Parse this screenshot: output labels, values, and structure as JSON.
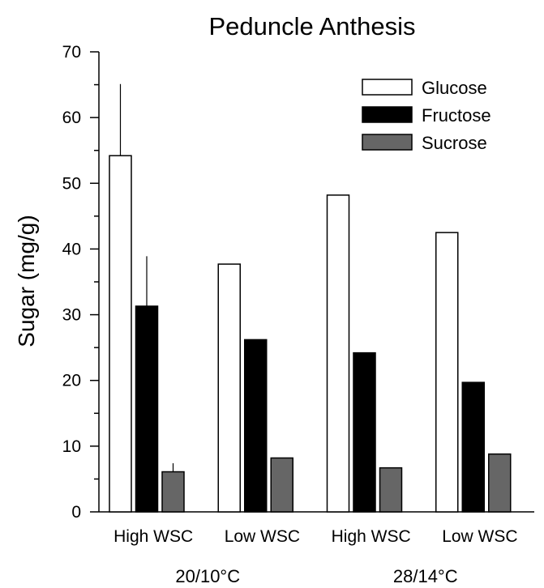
{
  "chart_data": {
    "type": "bar",
    "title": "Peduncle Anthesis",
    "xlabel": "",
    "ylabel": "Sugar (mg/g)",
    "ylim": [
      0,
      70
    ],
    "yticks": [
      0,
      10,
      20,
      30,
      40,
      50,
      60,
      70
    ],
    "grid": false,
    "legend_position": "top-right",
    "categories": [
      "High WSC",
      "Low WSC",
      "High WSC",
      "Low WSC"
    ],
    "groups": [
      {
        "label": "20/10°C",
        "category_indices": [
          0,
          1
        ]
      },
      {
        "label": "28/14°C",
        "category_indices": [
          2,
          3
        ]
      }
    ],
    "series": [
      {
        "name": "Glucose",
        "color": "#ffffff",
        "values": [
          54.2,
          37.7,
          48.2,
          42.5
        ],
        "error_upper": [
          10.9,
          null,
          null,
          null
        ]
      },
      {
        "name": "Fructose",
        "color": "#000000",
        "values": [
          31.3,
          26.2,
          24.2,
          19.7
        ],
        "error_upper": [
          7.6,
          null,
          null,
          null
        ]
      },
      {
        "name": "Sucrose",
        "color": "#666666",
        "values": [
          6.1,
          8.2,
          6.7,
          8.8
        ],
        "error_upper": [
          1.3,
          null,
          null,
          null
        ]
      }
    ]
  }
}
